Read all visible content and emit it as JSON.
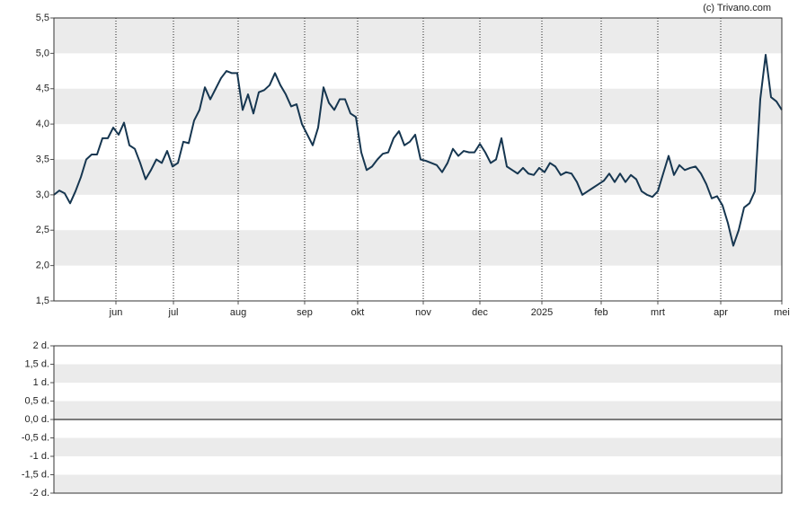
{
  "chart_data": [
    {
      "type": "line",
      "source": "(c) Trivano.com",
      "color": "#163650",
      "values": [
        3.0,
        3.06,
        3.02,
        2.88,
        3.05,
        3.25,
        3.5,
        3.57,
        3.57,
        3.8,
        3.8,
        3.95,
        3.85,
        4.02,
        3.7,
        3.65,
        3.45,
        3.22,
        3.35,
        3.5,
        3.45,
        3.62,
        3.4,
        3.45,
        3.75,
        3.73,
        4.05,
        4.2,
        4.52,
        4.35,
        4.5,
        4.65,
        4.75,
        4.72,
        4.72,
        4.2,
        4.42,
        4.15,
        4.45,
        4.48,
        4.55,
        4.72,
        4.55,
        4.42,
        4.25,
        4.28,
        4.0,
        3.85,
        3.7,
        3.95,
        4.52,
        4.3,
        4.2,
        4.35,
        4.35,
        4.15,
        4.1,
        3.6,
        3.35,
        3.4,
        3.5,
        3.58,
        3.6,
        3.8,
        3.9,
        3.7,
        3.75,
        3.85,
        3.5,
        3.48,
        3.45,
        3.42,
        3.32,
        3.45,
        3.65,
        3.55,
        3.62,
        3.6,
        3.6,
        3.72,
        3.6,
        3.45,
        3.5,
        3.8,
        3.4,
        3.35,
        3.3,
        3.38,
        3.3,
        3.28,
        3.38,
        3.32,
        3.45,
        3.4,
        3.28,
        3.32,
        3.3,
        3.18,
        3.0,
        3.05,
        3.1,
        3.15,
        3.2,
        3.3,
        3.18,
        3.3,
        3.18,
        3.28,
        3.22,
        3.05,
        3.0,
        2.97,
        3.05,
        3.3,
        3.55,
        3.28,
        3.42,
        3.35,
        3.38,
        3.4,
        3.3,
        3.15,
        2.95,
        2.98,
        2.85,
        2.6,
        2.28,
        2.5,
        2.82,
        2.88,
        3.05,
        4.35,
        4.98,
        4.38,
        4.32,
        4.2
      ],
      "xlim": [
        0,
        135
      ],
      "xticks": [
        {
          "value": 11.5,
          "label": "jun"
        },
        {
          "value": 22.17,
          "label": "jul"
        },
        {
          "value": 34.17,
          "label": "aug"
        },
        {
          "value": 46.5,
          "label": "sep"
        },
        {
          "value": 56.33,
          "label": "okt"
        },
        {
          "value": 68.5,
          "label": "nov"
        },
        {
          "value": 79,
          "label": "dec"
        },
        {
          "value": 90.5,
          "label": "2025"
        },
        {
          "value": 101.5,
          "label": "feb"
        },
        {
          "value": 112,
          "label": "mrt"
        },
        {
          "value": 123.67,
          "label": "apr"
        },
        {
          "value": 135,
          "label": "mei"
        }
      ],
      "ylim": [
        1.5,
        5.5
      ],
      "yticks": [
        {
          "value": 1.5,
          "label": "1,5"
        },
        {
          "value": 2,
          "label": "2,0"
        },
        {
          "value": 2.5,
          "label": "2,5"
        },
        {
          "value": 3,
          "label": "3,0"
        },
        {
          "value": 3.5,
          "label": "3,5"
        },
        {
          "value": 4,
          "label": "4,0"
        },
        {
          "value": 4.5,
          "label": "4,5"
        },
        {
          "value": 5,
          "label": "5,0"
        },
        {
          "value": 5.5,
          "label": "5,5"
        }
      ],
      "bands": true,
      "xgrid": "dotted"
    },
    {
      "type": "line",
      "ylim": [
        -2,
        2
      ],
      "yticks": [
        {
          "value": -2,
          "label": "-2 d."
        },
        {
          "value": -1.5,
          "label": "-1,5 d."
        },
        {
          "value": -1,
          "label": "-1 d."
        },
        {
          "value": -0.5,
          "label": "-0,5 d."
        },
        {
          "value": 0,
          "label": "0,0 d."
        },
        {
          "value": 0.5,
          "label": "0,5 d."
        },
        {
          "value": 1,
          "label": "1 d."
        },
        {
          "value": 1.5,
          "label": "1,5 d."
        },
        {
          "value": 2,
          "label": "2 d."
        }
      ],
      "bands": true,
      "zero_line": true
    }
  ]
}
